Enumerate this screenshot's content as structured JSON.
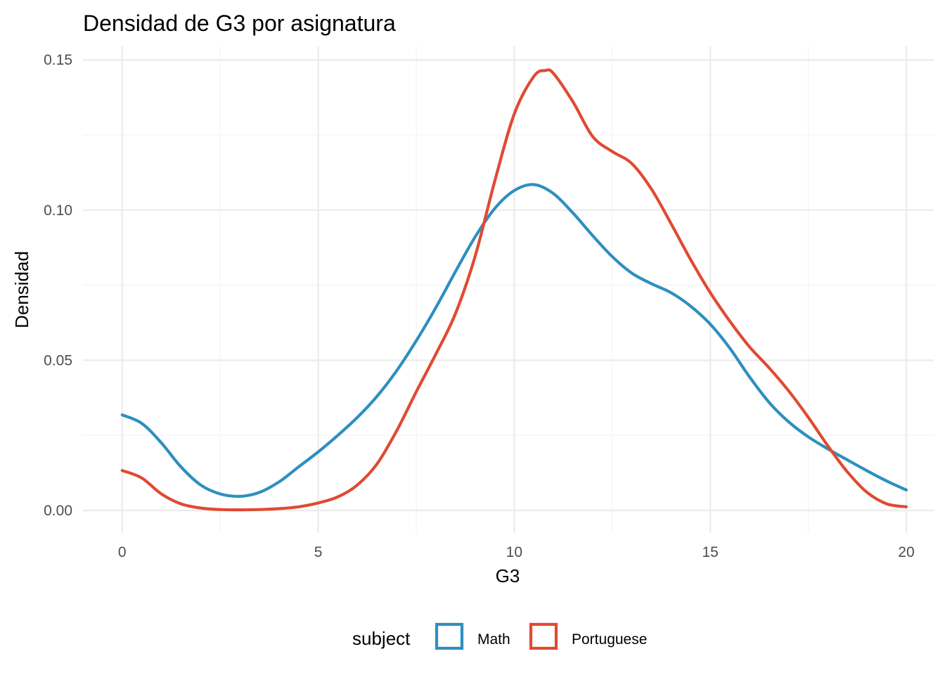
{
  "chart_data": {
    "type": "line",
    "title": "Densidad de G3 por asignatura",
    "xlabel": "G3",
    "ylabel": "Densidad",
    "xlim": [
      -1,
      20.7
    ],
    "ylim": [
      -0.0075,
      0.1545
    ],
    "x_ticks": [
      0,
      5,
      10,
      15,
      20
    ],
    "x_tick_labels": [
      "0",
      "5",
      "10",
      "15",
      "20"
    ],
    "x_minor_ticks": [
      2.5,
      7.5,
      12.5,
      17.5
    ],
    "y_ticks": [
      0.0,
      0.05,
      0.1,
      0.15
    ],
    "y_tick_labels": [
      "0.00",
      "0.05",
      "0.10",
      "0.15"
    ],
    "y_minor_ticks": [
      0.025,
      0.075,
      0.125
    ],
    "grid": true,
    "legend": {
      "title": "subject",
      "position": "bottom",
      "entries": [
        "Math",
        "Portuguese"
      ]
    },
    "series": [
      {
        "name": "Math",
        "color": "#2E8FC0",
        "points": [
          [
            0,
            0.0318
          ],
          [
            0.5,
            0.029
          ],
          [
            1,
            0.0225
          ],
          [
            1.5,
            0.0145
          ],
          [
            2,
            0.0085
          ],
          [
            2.5,
            0.0055
          ],
          [
            3,
            0.0047
          ],
          [
            3.5,
            0.006
          ],
          [
            4,
            0.0095
          ],
          [
            4.5,
            0.0145
          ],
          [
            5,
            0.0195
          ],
          [
            5.5,
            0.025
          ],
          [
            6,
            0.031
          ],
          [
            6.5,
            0.038
          ],
          [
            7,
            0.0465
          ],
          [
            7.5,
            0.0565
          ],
          [
            8,
            0.0675
          ],
          [
            8.5,
            0.0795
          ],
          [
            9,
            0.091
          ],
          [
            9.5,
            0.1005
          ],
          [
            10,
            0.1065
          ],
          [
            10.5,
            0.1085
          ],
          [
            11,
            0.1055
          ],
          [
            11.5,
            0.099
          ],
          [
            12,
            0.0915
          ],
          [
            12.5,
            0.0845
          ],
          [
            13,
            0.079
          ],
          [
            13.5,
            0.0755
          ],
          [
            14,
            0.0725
          ],
          [
            14.5,
            0.068
          ],
          [
            15,
            0.062
          ],
          [
            15.5,
            0.054
          ],
          [
            16,
            0.0445
          ],
          [
            16.5,
            0.036
          ],
          [
            17,
            0.0295
          ],
          [
            17.5,
            0.0245
          ],
          [
            18,
            0.0205
          ],
          [
            18.5,
            0.0168
          ],
          [
            19,
            0.0132
          ],
          [
            19.5,
            0.0098
          ],
          [
            20,
            0.0068
          ]
        ]
      },
      {
        "name": "Portuguese",
        "color": "#E04A33",
        "points": [
          [
            0,
            0.0133
          ],
          [
            0.5,
            0.0108
          ],
          [
            1,
            0.0055
          ],
          [
            1.5,
            0.0022
          ],
          [
            2,
            0.0008
          ],
          [
            2.5,
            0.0003
          ],
          [
            3,
            0.0002
          ],
          [
            3.5,
            0.0003
          ],
          [
            4,
            0.0006
          ],
          [
            4.5,
            0.0012
          ],
          [
            5,
            0.0025
          ],
          [
            5.5,
            0.0045
          ],
          [
            6,
            0.0085
          ],
          [
            6.5,
            0.0155
          ],
          [
            7,
            0.0265
          ],
          [
            7.5,
            0.0395
          ],
          [
            8,
            0.052
          ],
          [
            8.5,
            0.0655
          ],
          [
            9,
            0.0845
          ],
          [
            9.5,
            0.1095
          ],
          [
            10,
            0.132
          ],
          [
            10.5,
            0.1445
          ],
          [
            10.8,
            0.1465
          ],
          [
            11,
            0.1455
          ],
          [
            11.5,
            0.136
          ],
          [
            12,
            0.1245
          ],
          [
            12.5,
            0.1195
          ],
          [
            13,
            0.1155
          ],
          [
            13.5,
            0.107
          ],
          [
            14,
            0.0955
          ],
          [
            14.5,
            0.0835
          ],
          [
            15,
            0.0725
          ],
          [
            15.5,
            0.063
          ],
          [
            16,
            0.0545
          ],
          [
            16.5,
            0.0475
          ],
          [
            17,
            0.0398
          ],
          [
            17.5,
            0.031
          ],
          [
            18,
            0.0215
          ],
          [
            18.5,
            0.0128
          ],
          [
            19,
            0.006
          ],
          [
            19.5,
            0.0022
          ],
          [
            20,
            0.0012
          ]
        ]
      }
    ]
  }
}
